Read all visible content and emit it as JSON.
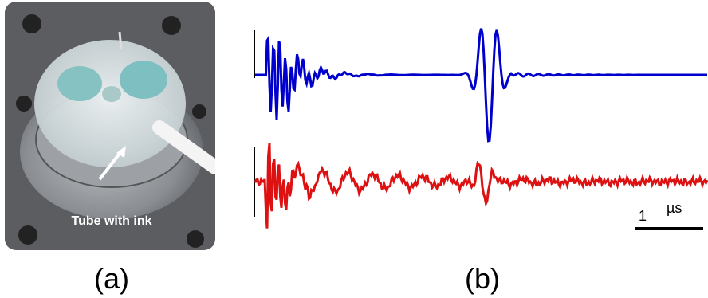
{
  "photo": {
    "annotation": "Tube with ink",
    "caption": "(a)"
  },
  "signals": {
    "caption": "(b)",
    "scale_bar": {
      "number": "1",
      "unit": "µs"
    }
  }
}
